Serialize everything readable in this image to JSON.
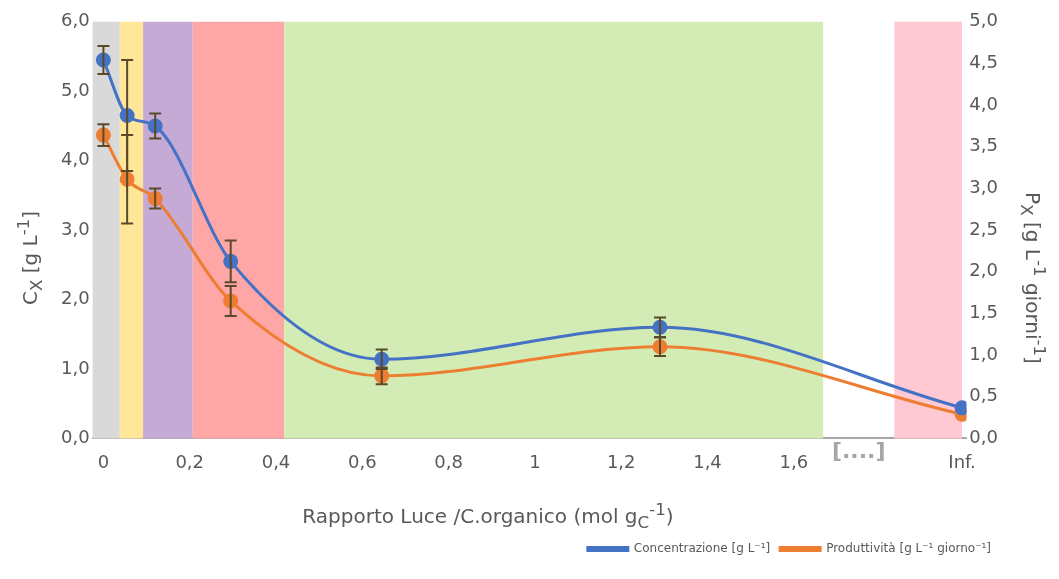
{
  "chart_data": {
    "type": "line",
    "xlabel": "Rapporto Luce /C.organico (mol g$_{C}$$^{-1}$)",
    "ylabel": "C$_{X}$ [g L$^{-1}$]",
    "y2label": "P$_{X}$ [g L$^{-1}$ giorni$^{-1}$]",
    "xlim": [
      -0.025,
      2.0
    ],
    "xticks": [
      0,
      {
        "value": 0.2,
        "label": "0,2"
      },
      {
        "value": 0.4,
        "label": "0,4"
      },
      {
        "value": 0.6,
        "label": "0,6"
      },
      {
        "value": 0.8,
        "label": "0,8"
      },
      1,
      {
        "value": 1.2,
        "label": "1,2"
      },
      {
        "value": 1.4,
        "label": "1,4"
      },
      {
        "value": 1.6,
        "label": "1,6"
      },
      {
        "value": 1.99,
        "label": "Inf."
      }
    ],
    "ylim": [
      0,
      6
    ],
    "yticks": [
      {
        "value": 0,
        "label": "0,0"
      },
      {
        "value": 1,
        "label": "1,0"
      },
      {
        "value": 2,
        "label": "2,0"
      },
      {
        "value": 3,
        "label": "3,0"
      },
      {
        "value": 4,
        "label": "4,0"
      },
      {
        "value": 5,
        "label": "5,0"
      },
      {
        "value": 6,
        "label": "6,0"
      }
    ],
    "y2lim": [
      0,
      5
    ],
    "y2ticks": [
      {
        "value": 0,
        "label": "0,0"
      },
      {
        "value": 0.5,
        "label": "0,5"
      },
      {
        "value": 1,
        "label": "1,0"
      },
      {
        "value": 1.5,
        "label": "1,5"
      },
      {
        "value": 2,
        "label": "2,0"
      },
      {
        "value": 2.5,
        "label": "2,5"
      },
      {
        "value": 3,
        "label": "3,0"
      },
      {
        "value": 3.5,
        "label": "3,5"
      },
      {
        "value": 4,
        "label": "4,0"
      },
      {
        "value": 4.5,
        "label": "4,5"
      },
      {
        "value": 5,
        "label": "5,0"
      }
    ],
    "series": [
      {
        "name": "Concentrazione [g L⁻¹]",
        "color": "#4472c4",
        "x": [
          0,
          0.055,
          0.12,
          0.295,
          0.645,
          1.29,
          1.99
        ],
        "values": [
          5.45,
          4.65,
          4.5,
          2.55,
          1.14,
          1.6,
          0.44
        ],
        "errors": [
          0.2,
          0.8,
          0.18,
          0.3,
          0.14,
          0.14,
          null
        ]
      },
      {
        "name": "Produttività [g L⁻¹ giorno⁻¹]",
        "color": "#ed7d31",
        "axis": "y2",
        "x": [
          0,
          0.055,
          0.12,
          0.295,
          0.645,
          1.29,
          1.99
        ],
        "values": [
          3.64,
          3.11,
          2.88,
          1.65,
          0.75,
          1.1,
          0.29
        ],
        "errors": [
          0.13,
          0.53,
          0.12,
          0.18,
          0.1,
          0.11,
          null
        ]
      }
    ],
    "bands": [
      {
        "axis": "x",
        "from": -0.025,
        "to": 0.038,
        "color": "#d9d9d9"
      },
      {
        "axis": "x",
        "from": 0.038,
        "to": 0.092,
        "color": "#ffe699"
      },
      {
        "axis": "x",
        "from": 0.092,
        "to": 0.207,
        "color": "#c5aad6"
      },
      {
        "axis": "x",
        "from": 0.207,
        "to": 0.419,
        "color": "#ffa6a6"
      },
      {
        "axis": "x",
        "from": 0.419,
        "to": 1.668,
        "color": "#d3ecb5"
      },
      {
        "axis": "x",
        "from": 1.833,
        "to": 1.99,
        "color": "#ffc9d4"
      }
    ],
    "annotations": [
      "[....]"
    ],
    "marker": "circle",
    "grid": false,
    "legend": "bottom right"
  }
}
